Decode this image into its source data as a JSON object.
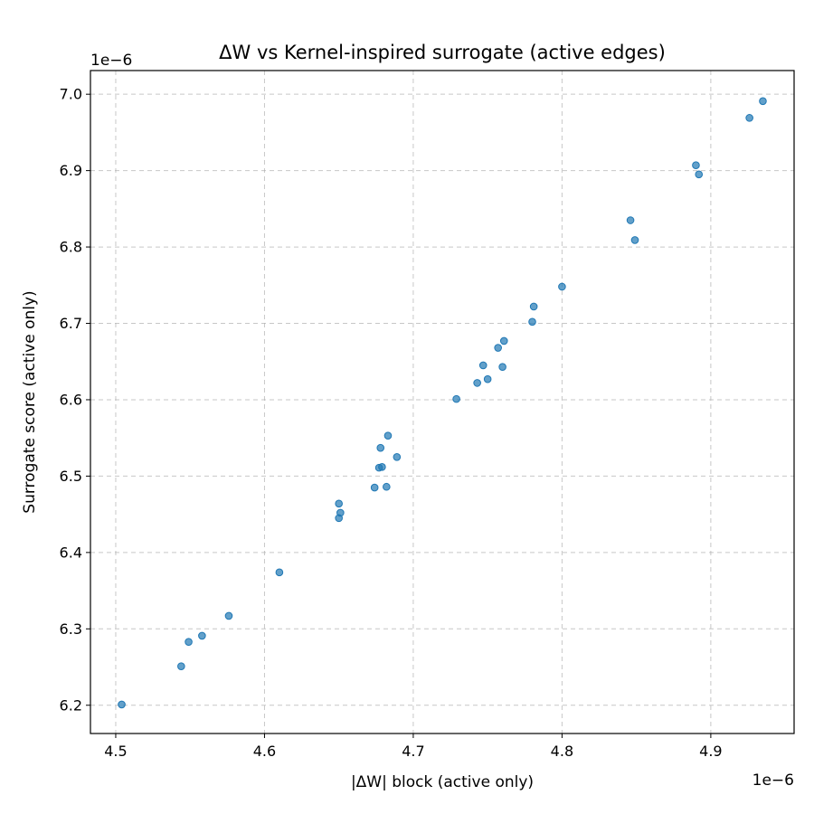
{
  "chart_data": {
    "type": "scatter",
    "title": "ΔW vs Kernel-inspired surrogate (active edges)",
    "xlabel": "|ΔW| block (active only)",
    "ylabel": "Surrogate score (active only)",
    "x_offset_label": "1e−6",
    "y_offset_label": "1e−6",
    "xlim": [
      4.483,
      4.956
    ],
    "ylim": [
      6.163,
      7.031
    ],
    "xticks": [
      4.5,
      4.6,
      4.7,
      4.8,
      4.9
    ],
    "xtick_labels": [
      "4.5",
      "4.6",
      "4.7",
      "4.8",
      "4.9"
    ],
    "yticks": [
      6.2,
      6.3,
      6.4,
      6.5,
      6.6,
      6.7,
      6.8,
      6.9,
      7.0
    ],
    "ytick_labels": [
      "6.2",
      "6.3",
      "6.4",
      "6.5",
      "6.6",
      "6.7",
      "6.8",
      "6.9",
      "7.0"
    ],
    "grid": true,
    "marker_color": "#1f77b4",
    "marker_alpha": 0.7,
    "points": [
      {
        "x": 4.504,
        "y": 6.201
      },
      {
        "x": 4.544,
        "y": 6.251
      },
      {
        "x": 4.549,
        "y": 6.283
      },
      {
        "x": 4.558,
        "y": 6.291
      },
      {
        "x": 4.576,
        "y": 6.317
      },
      {
        "x": 4.61,
        "y": 6.374
      },
      {
        "x": 4.65,
        "y": 6.445
      },
      {
        "x": 4.651,
        "y": 6.452
      },
      {
        "x": 4.65,
        "y": 6.464
      },
      {
        "x": 4.674,
        "y": 6.485
      },
      {
        "x": 4.682,
        "y": 6.486
      },
      {
        "x": 4.677,
        "y": 6.511
      },
      {
        "x": 4.679,
        "y": 6.512
      },
      {
        "x": 4.689,
        "y": 6.525
      },
      {
        "x": 4.678,
        "y": 6.537
      },
      {
        "x": 4.683,
        "y": 6.553
      },
      {
        "x": 4.729,
        "y": 6.601
      },
      {
        "x": 4.743,
        "y": 6.622
      },
      {
        "x": 4.75,
        "y": 6.627
      },
      {
        "x": 4.747,
        "y": 6.645
      },
      {
        "x": 4.76,
        "y": 6.643
      },
      {
        "x": 4.757,
        "y": 6.668
      },
      {
        "x": 4.761,
        "y": 6.677
      },
      {
        "x": 4.78,
        "y": 6.702
      },
      {
        "x": 4.781,
        "y": 6.722
      },
      {
        "x": 4.8,
        "y": 6.748
      },
      {
        "x": 4.846,
        "y": 6.835
      },
      {
        "x": 4.849,
        "y": 6.809
      },
      {
        "x": 4.89,
        "y": 6.907
      },
      {
        "x": 4.892,
        "y": 6.895
      },
      {
        "x": 4.926,
        "y": 6.969
      },
      {
        "x": 4.935,
        "y": 6.991
      }
    ]
  }
}
